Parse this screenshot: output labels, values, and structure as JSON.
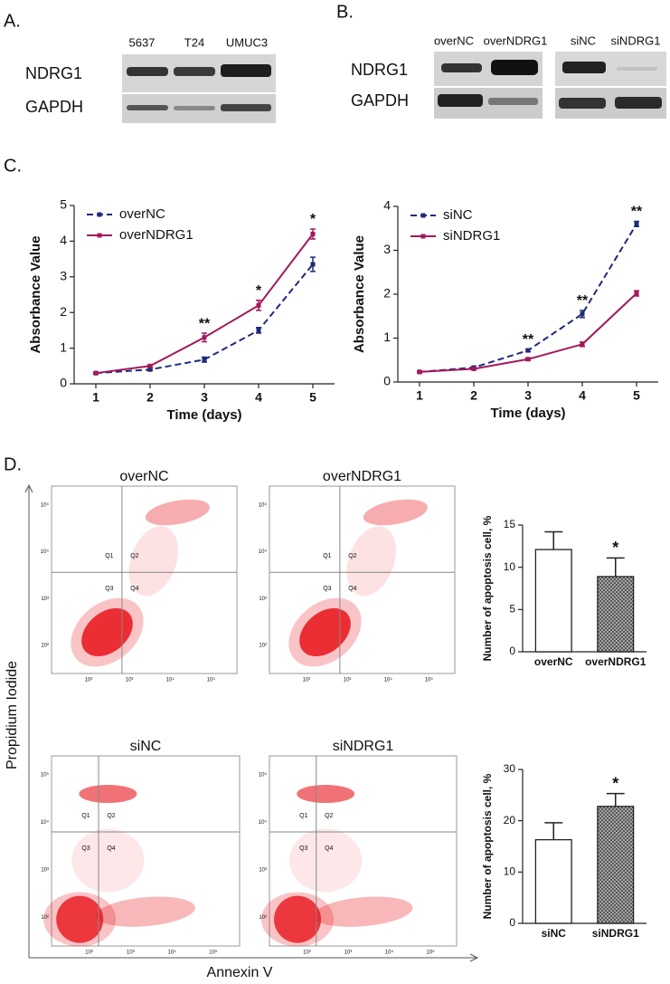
{
  "panels": {
    "A": {
      "label": "A.",
      "columns": [
        "5637",
        "T24",
        "UMUC3"
      ],
      "rows": [
        "NDRG1",
        "GAPDH"
      ]
    },
    "B": {
      "label": "B.",
      "columns": [
        "overNC",
        "overNDRG1",
        "siNC",
        "siNDRG1"
      ],
      "rows": [
        "NDRG1",
        "GAPDH"
      ]
    },
    "C": {
      "label": "C."
    },
    "D": {
      "label": "D.",
      "y_label": "Propidium Iodide",
      "x_label": "Annexin V"
    }
  },
  "flow_plots": [
    {
      "title": "overNC",
      "quadrants": [
        "Q1",
        "Q2",
        "Q3",
        "Q4"
      ]
    },
    {
      "title": "overNDRG1",
      "quadrants": [
        "Q1",
        "Q2",
        "Q3",
        "Q4"
      ]
    },
    {
      "title": "siNC",
      "quadrants": [
        "Q1",
        "Q2",
        "Q3",
        "Q4"
      ]
    },
    {
      "title": "siNDRG1",
      "quadrants": [
        "Q1",
        "Q2",
        "Q3",
        "Q4"
      ]
    }
  ],
  "flow_axis": {
    "x": [
      "10²",
      "10³",
      "10⁴",
      "10⁵"
    ],
    "y": [
      "10⁵",
      "10⁴",
      "10³",
      "10²"
    ]
  },
  "chart_data": [
    {
      "type": "line",
      "x_label": "Time (days)",
      "y_label": "Absorbance Value",
      "x": [
        1,
        2,
        3,
        4,
        5
      ],
      "xlim": [
        0.6,
        5.4
      ],
      "xticks": [
        1,
        2,
        3,
        4,
        5
      ],
      "ylim": [
        0,
        5
      ],
      "yticks": [
        0,
        1,
        2,
        3,
        4,
        5
      ],
      "legend": "upper left",
      "series": [
        {
          "name": "overNC",
          "color": "#1f2a7a",
          "linestyle": "dashed",
          "values": [
            0.3,
            0.4,
            0.68,
            1.5,
            3.35
          ],
          "errors": [
            0.02,
            0.03,
            0.07,
            0.08,
            0.2
          ]
        },
        {
          "name": "overNDRG1",
          "color": "#a3195b",
          "linestyle": "solid",
          "values": [
            0.3,
            0.5,
            1.3,
            2.2,
            4.2
          ],
          "errors": [
            0.02,
            0.03,
            0.12,
            0.14,
            0.14
          ]
        }
      ],
      "annotations": [
        {
          "x": 3,
          "text": "**"
        },
        {
          "x": 4,
          "text": "*"
        },
        {
          "x": 5,
          "text": "*"
        }
      ]
    },
    {
      "type": "line",
      "x_label": "Time (days)",
      "y_label": "Absorbance Value",
      "x": [
        1,
        2,
        3,
        4,
        5
      ],
      "xlim": [
        0.6,
        5.4
      ],
      "xticks": [
        1,
        2,
        3,
        4,
        5
      ],
      "ylim": [
        0,
        4
      ],
      "yticks": [
        0,
        1,
        2,
        3,
        4
      ],
      "legend": "upper left",
      "series": [
        {
          "name": "siNC",
          "color": "#1f2a7a",
          "linestyle": "dashed",
          "values": [
            0.23,
            0.33,
            0.72,
            1.55,
            3.6
          ],
          "errors": [
            0.02,
            0.02,
            0.03,
            0.08,
            0.06
          ]
        },
        {
          "name": "siNDRG1",
          "color": "#a3195b",
          "linestyle": "solid",
          "values": [
            0.23,
            0.3,
            0.52,
            0.86,
            2.02
          ],
          "errors": [
            0.02,
            0.02,
            0.03,
            0.05,
            0.06
          ]
        }
      ],
      "annotations": [
        {
          "x": 3,
          "text": "**"
        },
        {
          "x": 4,
          "text": "**"
        },
        {
          "x": 5,
          "text": "**"
        }
      ]
    },
    {
      "type": "bar",
      "y_label": "Number of apoptosis cell, %",
      "categories": [
        "overNC",
        "overNDRG1"
      ],
      "values": [
        12.1,
        8.9
      ],
      "errors": [
        2.1,
        2.2
      ],
      "hatched": [
        false,
        true
      ],
      "ylim": [
        0,
        15
      ],
      "yticks": [
        0,
        5,
        10,
        15
      ],
      "annotations": [
        {
          "x": "overNDRG1",
          "text": "*"
        }
      ]
    },
    {
      "type": "bar",
      "y_label": "Number of apoptosis cell, %",
      "categories": [
        "siNC",
        "siNDRG1"
      ],
      "values": [
        16.3,
        22.8
      ],
      "errors": [
        3.3,
        2.5
      ],
      "hatched": [
        false,
        true
      ],
      "ylim": [
        0,
        30
      ],
      "yticks": [
        0,
        10,
        20,
        30
      ],
      "annotations": [
        {
          "x": "siNDRG1",
          "text": "*"
        }
      ]
    }
  ]
}
